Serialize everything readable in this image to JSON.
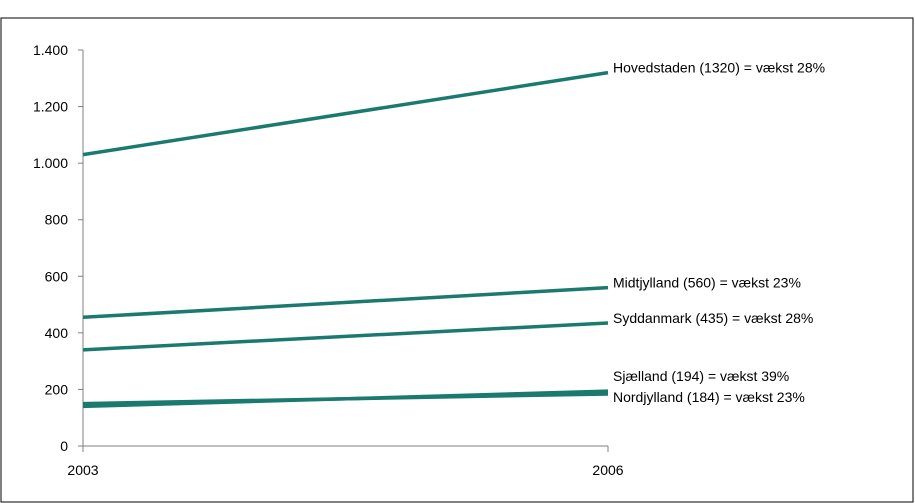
{
  "chart_data": {
    "type": "line",
    "title": "",
    "xlabel": "",
    "ylabel": "",
    "categories": [
      "2003",
      "2006"
    ],
    "ylim": [
      0,
      1400
    ],
    "yticks": [
      0,
      200,
      400,
      600,
      800,
      1000,
      1200,
      1400
    ],
    "ytick_labels": [
      "0",
      "200",
      "400",
      "600",
      "800",
      "1.000",
      "1.200",
      "1.400"
    ],
    "grid": false,
    "line_color": "#1b7a6f",
    "series": [
      {
        "label": "Hovedstaden (1320) = vækst 28%",
        "values": [
          1030,
          1320
        ]
      },
      {
        "label": "Midtjylland (560) = vækst 23%",
        "values": [
          455,
          560
        ]
      },
      {
        "label": "Syddanmark (435) = vækst 28%",
        "values": [
          340,
          435
        ]
      },
      {
        "label": "Sjælland (194) = vækst 39%",
        "values": [
          140,
          194
        ]
      },
      {
        "label": "Nordjylland (184) = vækst 23%",
        "values": [
          150,
          184
        ]
      }
    ]
  }
}
